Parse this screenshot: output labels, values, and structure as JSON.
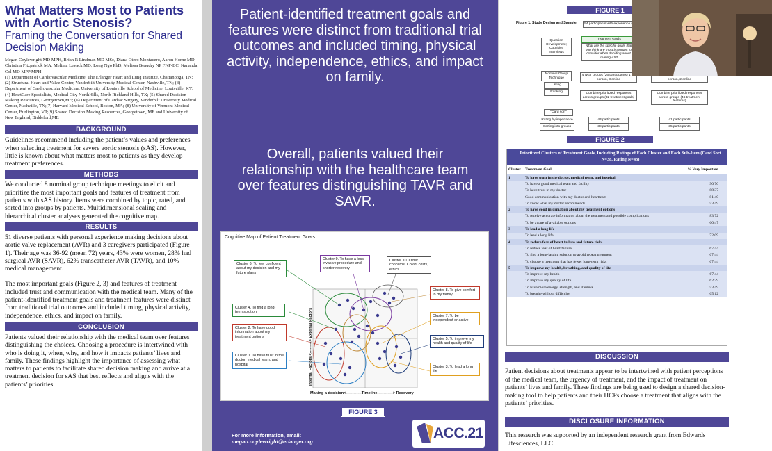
{
  "left": {
    "title": "What Matters Most to Patients with Aortic Stenosis?",
    "subtitle": "Framing the Conversation for Shared Decision Making",
    "authors": "Megan Coylewright MD MPH, Brian R Lindman MD MSc, Diana Otero Montacero, Aaron Horne MD, Christina Fitzpatrick MA, Melissa Levack MD, Long Ngo PhD, Melissa Beaudry NP FNP-BC, Nananda Col MD MPP MPH",
    "affiliations": "(1) Department of Cardiovascular Medicine, The Erlanger Heart and Lung Institute, Chattanooga, TN; (2) Structural Heart and Valve Center, Vanderbilt University Medical Center, Nashville, TN; (3) Department of Cardiovascular Medicine, University of Louisville School of Medicine, Louisville, KY; (4) HeartCare Specialists, Medical City NorthHills, North Richland Hills, TX; (5) Shared Decision Making Resources, Georgetown,ME; (6) Department of Cardiac Surgery, Vanderbilt University Medical Center, Nashville, TN;(7) Harvard Medical School, Boston, MA; (8) University of Vermont Medical Center, Burlington, VT;(9) Shared Decision Making Resources, Georgetown, ME and University of New England, Biddeford,ME",
    "background_h": "BACKGROUND",
    "background": "Guidelines recommend including the patient’s values and preferences when selecting treatment for severe aortic stenosis (sAS). However, little is known about what matters most to patients as they develop treatment preferences.",
    "methods_h": "METHODS",
    "methods": "We conducted 8 nominal group technique meetings to elicit and prioritize the most important goals and features of treatment from patients with sAS history. Items were combined by topic, rated, and sorted into groups by patients. Multidimensional scaling and hierarchical cluster analyses generated the cognitive map.",
    "results_h": "RESULTS",
    "results1": "51 diverse patients with personal experience making decisions about aortic valve replacement (AVR) and 3 caregivers participated (Figure 1). Their age was 36-92 (mean 72) years, 43% were women, 28% had surgical AVR (SAVR), 62% transcatheter AVR (TAVR), and 10% medical management.",
    "results2": "The most important goals (Figure 2, 3) and features of treatment included trust and communication with the medical team. Many of the patient-identified treatment goals and treatment features were distinct from traditional trial outcomes and included timing, physical activity, independence, ethics, and impact on family.",
    "conclusion_h": "CONCLUSION",
    "conclusion": "Patients valued their relationship with the medical team over features distinguishing the choices. Choosing a procedure is intertwined with who is doing it, when, why, and how it impacts patients’ lives and family. These findings highlight the importance of assessing what matters to patients to facilitate shared decision making and arrive at a treatment decision for sAS that best reflects and aligns with the patients’ priorities."
  },
  "mid": {
    "statement1": "Patient-identified treatment goals and features were distinct from traditional trial outcomes and included timing, physical activity, independence, ethics, and impact on family.",
    "statement2": "Overall, patients valued their relationship with the healthcare team over features distinguishing TAVR and SAVR.",
    "fig3_title": "Cognitive Map of Patient Treatment Goals",
    "fig3_label": "FIGURE 3",
    "clusters": {
      "c6": "Cluster 6. To feel confident about my decision and my future plans",
      "c9": "Cluster 9. To have a less invasive procedure and shorter recovery",
      "c10": "Cluster 10. Other concerns: Covid, costs, ethics",
      "c8": "Cluster 8. To give comfort to my family",
      "c4": "Cluster 4. To find a long-term solution",
      "c7": "Cluster 7. To be independent or active",
      "c2": "Cluster 2. To have good information about my treatment options",
      "c5": "Cluster 5. To improve my health and quality of life",
      "c1": "Cluster 1. To have trust in the doctor, medical team, and hospital",
      "c3": "Cluster 3. To lead a long life"
    },
    "axis_y": "Internal Factors <---------> External Factors",
    "axis_x": "Making a decision<------------Timeline------------> Recovery",
    "contact_h": "For more information, email:",
    "contact_email": "megan.coylewright@erlanger.org",
    "logo": "ACC.21"
  },
  "right": {
    "fig1_label": "FIGURE 1",
    "fig1_caption": "Figure 1. Study Design and Sample",
    "fig1": {
      "n54": "54 participants with experience (51)",
      "qdev": "Question Development; Cognitive Interviews",
      "tg": "Treatment Goals",
      "tgq": "What are the specific goals that you think are most important to consider when deciding about treating AS?",
      "ngt": "Nominal Group Technique",
      "listing": "Listing",
      "ranking": "Ranking",
      "ngt1": "4 NGT groups (26 participants) 1 in-person, 3 online",
      "ngt2": "4 NGT groups (32 participants) 2 in-person, 2 online",
      "comb1": "Combine prioritized responses across groups (32 treatment goals)",
      "comb2": "Combine prioritized responses across groups (46 treatment features)",
      "cardsort": "\"Card sort\"",
      "rating": "Rating by importance",
      "sorting": "Sorting into groups",
      "p43": "43 participants",
      "p38": "38 participants",
      "p41": "41 participants",
      "p35": "35 participants"
    },
    "fig2_label": "FIGURE 2",
    "fig2_title": "Prioritized Clusters of Treatment Goals, Including Ratings of Each Cluster and Each Sub-Item (Card Sort N=38, Rating N=43)",
    "fig2_headers": [
      "Cluster",
      "Treatment Goal",
      "% Very Important"
    ],
    "fig2_groups": [
      {
        "num": "1",
        "title": "To have trust in the doctor, medical team, and hospital",
        "items": [
          {
            "goal": "To have a good medical team and facility",
            "pct": "90.70"
          },
          {
            "goal": "To have trust in my doctor",
            "pct": "88.37"
          },
          {
            "goal": "Good communication with my doctor and heartteam",
            "pct": "81.40"
          },
          {
            "goal": "To know what my doctor recommends",
            "pct": "53.49"
          }
        ]
      },
      {
        "num": "2",
        "title": "To have good information about my treatment options",
        "items": [
          {
            "goal": "To receive accurate information about the treatment and possible complications",
            "pct": "83.72"
          },
          {
            "goal": "To be aware of available options",
            "pct": "60.47"
          }
        ]
      },
      {
        "num": "3",
        "title": "To lead a long life",
        "items": [
          {
            "goal": "To lead a long life",
            "pct": "72.09"
          }
        ]
      },
      {
        "num": "4",
        "title": "To reduce fear of heart failure and future risks",
        "items": [
          {
            "goal": "To reduce fear of heart failure",
            "pct": "67.44"
          },
          {
            "goal": "To find a long-lasting solution to avoid repeat treatment",
            "pct": "67.44"
          },
          {
            "goal": "To choose a treatment that has fewer long-term risks",
            "pct": "67.44"
          }
        ]
      },
      {
        "num": "5",
        "title": "To improve my health, breathing, and quality of life",
        "items": [
          {
            "goal": "To improve my health",
            "pct": "67.44"
          },
          {
            "goal": "To improve my quality of life",
            "pct": "62.79"
          },
          {
            "goal": "To have more energy, strength, and stamina",
            "pct": "53.49"
          },
          {
            "goal": "To breathe without difficulty",
            "pct": "65.12"
          }
        ]
      }
    ],
    "discussion_h": "DISCUSSION",
    "discussion": "Patient decisions about treatments appear to be intertwined with patient perceptions of the medical team, the urgency of treatment, and the impact of treatment on patients’ lives and family. These findings are being used to design a shared decision-making tool to help patients and their HCPs choose a treatment that aligns with the patients’ priorities.",
    "disclosure_h": "DISCLOSURE INFORMATION",
    "disclosure": "This research was supported by an independent research grant from Edwards Lifesciences, LLC."
  },
  "colors": {
    "purple": "#4f4797",
    "title_blue": "#2e2e8f",
    "table_head": "#4a4a9b"
  }
}
